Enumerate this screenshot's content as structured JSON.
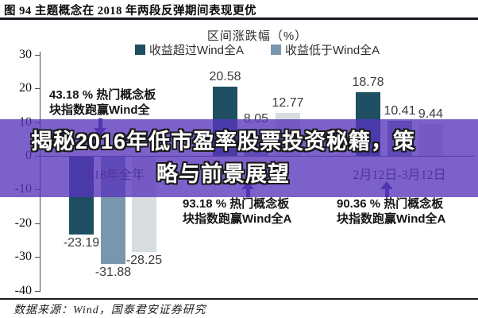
{
  "title": "图 94 主题概念在 2018 年两段反弹期间表现更优",
  "source": "数据来源：Wind，国泰君安证券研究",
  "overlay": {
    "line1": "揭秘2016年低市盈率股票投资秘籍，策",
    "line2": "略与前景展望",
    "band_color": "#5834BC"
  },
  "chart_data": {
    "type": "bar",
    "title": "区间涨跌幅（%）",
    "legend_position": "top",
    "grid": false,
    "legend": [
      {
        "label": "收益超过Wind全A",
        "color": "#1E4F63"
      },
      {
        "label": "收益低于Wind全A",
        "color": "#7A96AE"
      }
    ],
    "bar_colors": [
      "#1E4F63",
      "#7A96AE",
      "#D8DDE2"
    ],
    "ylim": [
      -40,
      30
    ],
    "yticks": [
      30,
      20,
      10,
      0,
      -10,
      -20,
      -30,
      -40
    ],
    "groups": [
      {
        "label": "2018年全年",
        "values": [
          -23.19,
          -31.88,
          -28.25
        ],
        "value_labels": [
          "-23.19",
          "-31.88",
          "-28.25"
        ],
        "annotation": {
          "line1": "43.18 % 热门概念板",
          "line2": "块指数跑赢Wind全",
          "arrow": "down"
        }
      },
      {
        "label": "",
        "values": [
          20.58,
          8.05,
          12.77
        ],
        "value_labels": [
          "20.58",
          "8.05",
          "12.77"
        ],
        "annotation": {
          "line1": "93.18 % 热门概念板",
          "line2": "块指数跑赢Wind全A",
          "arrow": "up"
        }
      },
      {
        "label": "2月12日-3月12日",
        "values": [
          18.78,
          10.41,
          9.44
        ],
        "value_labels": [
          "18.78",
          "10.41",
          "9.44"
        ],
        "annotation": {
          "line1": "90.36 % 热门概念板",
          "line2": "块指数跑赢Wind全A",
          "arrow": "up"
        }
      }
    ]
  }
}
